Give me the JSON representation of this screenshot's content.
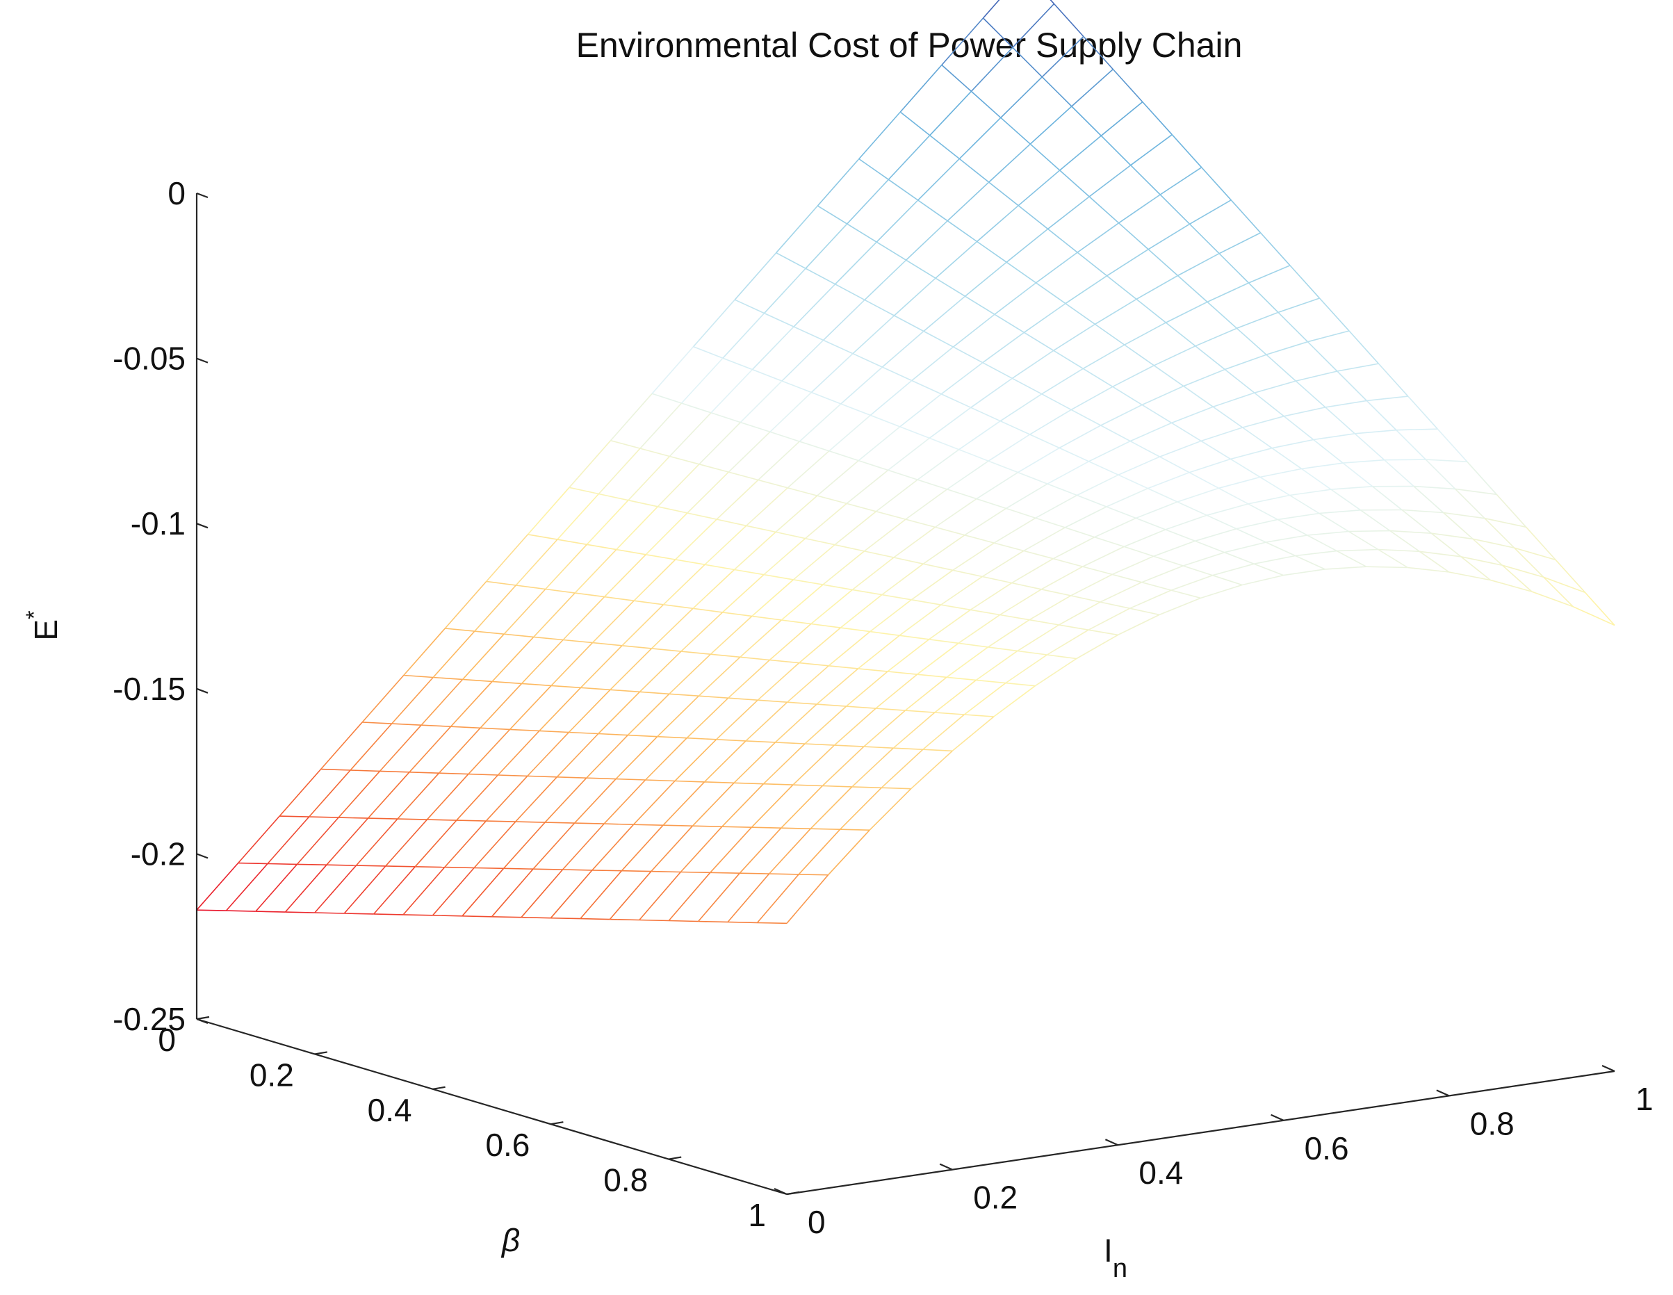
{
  "chart_data": {
    "type": "surface-mesh",
    "title": "Environmental Cost of Power Supply Chain",
    "x_axis": {
      "label": "I",
      "label_subscript": "n",
      "ticks": [
        "0",
        "0.2",
        "0.4",
        "0.6",
        "0.8",
        "1"
      ],
      "range": [
        0,
        1
      ]
    },
    "y_axis": {
      "label": "β",
      "ticks": [
        "0",
        "0.2",
        "0.4",
        "0.6",
        "0.8",
        "1"
      ],
      "range": [
        0,
        1
      ]
    },
    "z_axis": {
      "label": "E",
      "label_superscript": "*",
      "ticks": [
        "0",
        "-0.05",
        "-0.1",
        "-0.15",
        "-0.2",
        "-0.25"
      ],
      "range": [
        -0.25,
        0
      ]
    },
    "grid_samples": 21,
    "surface_corners": [
      {
        "In": 0,
        "beta": 0,
        "E": -0.217
      },
      {
        "In": 1,
        "beta": 0,
        "E": 0.03
      },
      {
        "In": 1,
        "beta": 1,
        "E": -0.115
      },
      {
        "In": 0,
        "beta": 1,
        "E": -0.168
      }
    ],
    "surface_ridge": {
      "In": 0.65,
      "beta": 1,
      "E": -0.085
    },
    "colormap": [
      "#e8112b",
      "#f46b33",
      "#fdb95f",
      "#fef3a8",
      "#e2f3f7",
      "#a7d8ea",
      "#68b1dd",
      "#3b58b0"
    ],
    "grid": false,
    "box": false
  }
}
